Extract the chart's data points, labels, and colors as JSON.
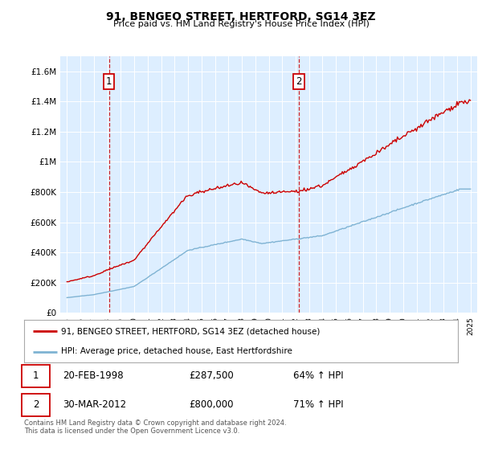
{
  "title": "91, BENGEO STREET, HERTFORD, SG14 3EZ",
  "subtitle": "Price paid vs. HM Land Registry's House Price Index (HPI)",
  "legend_line1": "91, BENGEO STREET, HERTFORD, SG14 3EZ (detached house)",
  "legend_line2": "HPI: Average price, detached house, East Hertfordshire",
  "footnote": "Contains HM Land Registry data © Crown copyright and database right 2024.\nThis data is licensed under the Open Government Licence v3.0.",
  "transactions": [
    {
      "label": "1",
      "date": "20-FEB-1998",
      "price": 287500,
      "hpi_pct": "64% ↑ HPI",
      "year": 1998.13
    },
    {
      "label": "2",
      "date": "30-MAR-2012",
      "price": 800000,
      "hpi_pct": "71% ↑ HPI",
      "year": 2012.25
    }
  ],
  "red_color": "#cc0000",
  "blue_color": "#7fb3d3",
  "bg_color": "#ddeeff",
  "ylim": [
    0,
    1700000
  ],
  "xlim": [
    1994.5,
    2025.5
  ],
  "yticks": [
    0,
    200000,
    400000,
    600000,
    800000,
    1000000,
    1200000,
    1400000,
    1600000
  ],
  "ytick_labels": [
    "£0",
    "£200K",
    "£400K",
    "£600K",
    "£800K",
    "£1M",
    "£1.2M",
    "£1.4M",
    "£1.6M"
  ]
}
